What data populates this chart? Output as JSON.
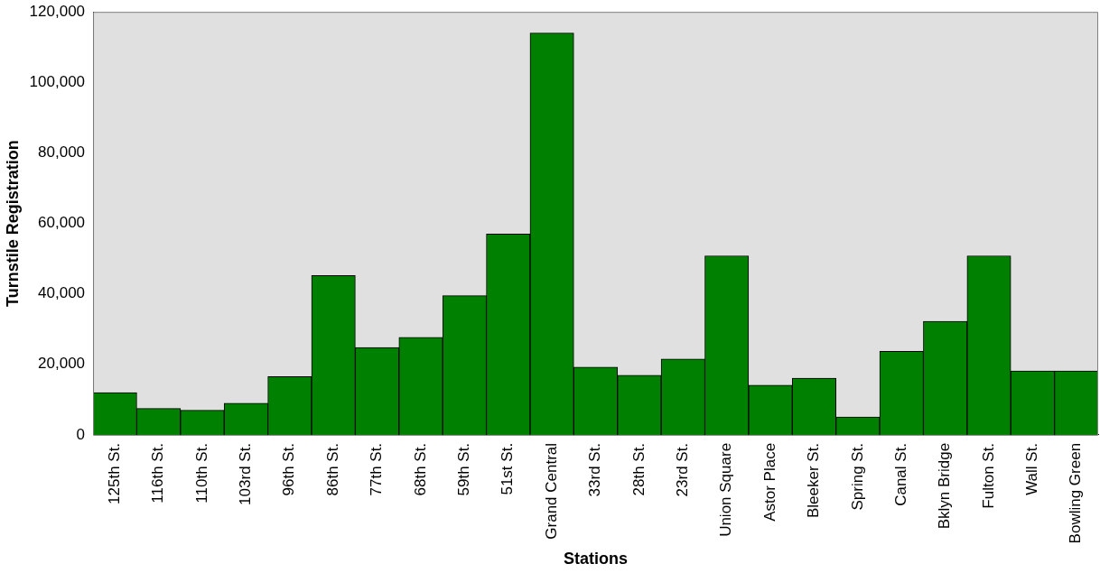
{
  "chart_data": {
    "type": "bar",
    "xlabel": "Stations",
    "ylabel": "Turnstile Registration",
    "categories": [
      "125th St.",
      "116th St.",
      "110th St.",
      "103rd St.",
      "96th St.",
      "86th St.",
      "77th St.",
      "68th St.",
      "59th St.",
      "51st St.",
      "Grand Central",
      "33rd St.",
      "28th St.",
      "23rd St.",
      "Union Square",
      "Astor Place",
      "Bleeker St.",
      "Spring St.",
      "Canal St.",
      "Bklyn Bridge",
      "Fulton St.",
      "Wall St.",
      "Bowling Green"
    ],
    "values": [
      12000,
      7500,
      7000,
      9000,
      16500,
      45200,
      24800,
      27700,
      39500,
      57000,
      114000,
      19200,
      16900,
      21500,
      50800,
      14100,
      16100,
      5100,
      23700,
      32200,
      50800,
      18100,
      18100
    ],
    "color": "#008000",
    "ylim": [
      0,
      120000
    ],
    "yticks": [
      {
        "value": 0,
        "label": "0"
      },
      {
        "value": 20000,
        "label": "20,000"
      },
      {
        "value": 40000,
        "label": "40,000"
      },
      {
        "value": 60000,
        "label": "60,000"
      },
      {
        "value": 80000,
        "label": "80,000"
      },
      {
        "value": 100000,
        "label": "100,000"
      },
      {
        "value": 120000,
        "label": "120,000"
      }
    ]
  }
}
